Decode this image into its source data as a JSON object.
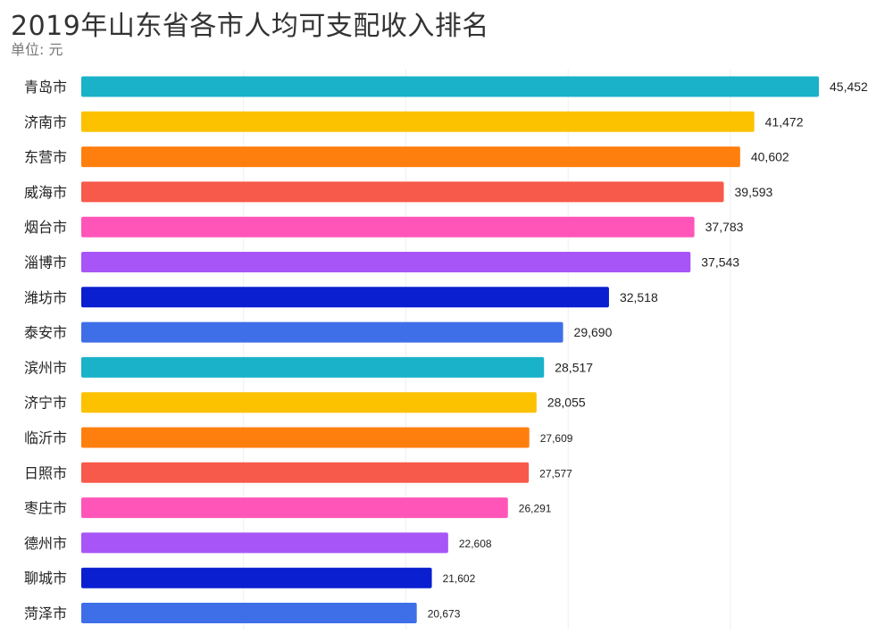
{
  "chart_data": {
    "type": "bar",
    "orientation": "horizontal",
    "title": "2019年山东省各市人均可支配收入排名",
    "subtitle": "单位: 元",
    "categories": [
      "青岛市",
      "济南市",
      "东营市",
      "威海市",
      "烟台市",
      "淄博市",
      "潍坊市",
      "泰安市",
      "滨州市",
      "济宁市",
      "临沂市",
      "日照市",
      "枣庄市",
      "德州市",
      "聊城市",
      "菏泽市"
    ],
    "values": [
      45452,
      41472,
      40602,
      39593,
      37783,
      37543,
      32518,
      29690,
      28517,
      28055,
      27609,
      27577,
      26291,
      22608,
      21602,
      20673
    ],
    "value_labels": [
      "45,452",
      "41,472",
      "40,602",
      "39,593",
      "37,783",
      "37,543",
      "32,518",
      "29,690",
      "28,517",
      "28,055",
      "27,609",
      "27,577",
      "26,291",
      "22,608",
      "21,602",
      "20,673"
    ],
    "colors": [
      "#19b2c9",
      "#fcc200",
      "#ff7f0e",
      "#f75a4a",
      "#ff55b8",
      "#a855f7",
      "#0a1fcf",
      "#3f6fe8",
      "#19b2c9",
      "#fcc200",
      "#ff7f0e",
      "#f75a4a",
      "#ff55b8",
      "#a855f7",
      "#0a1fcf",
      "#3f6fe8"
    ],
    "xlim": [
      0,
      45452
    ],
    "grid": true,
    "legend": "none"
  }
}
